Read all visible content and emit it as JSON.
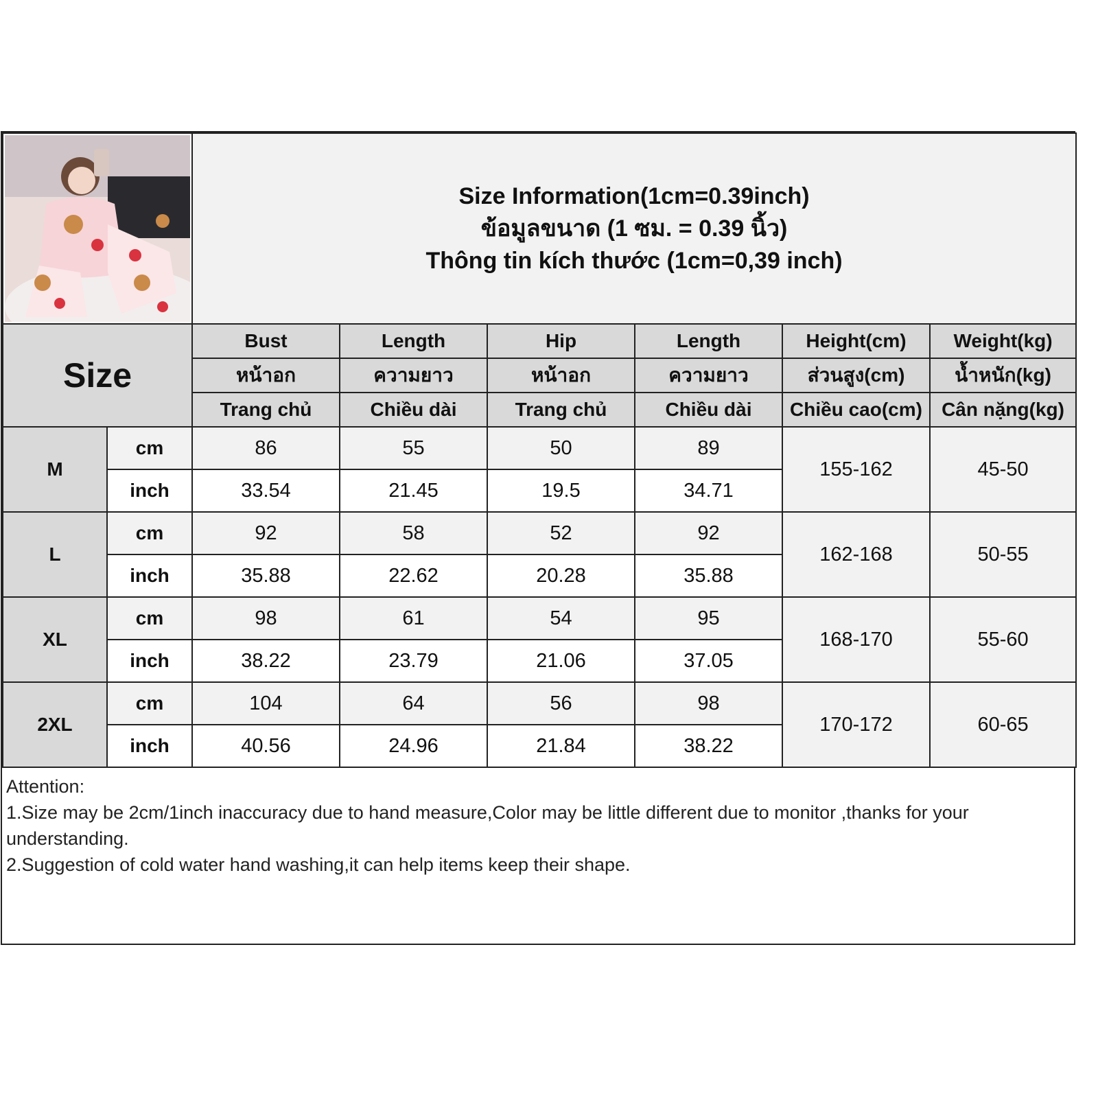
{
  "title": {
    "line1": "Size Information(1cm=0.39inch)",
    "line2": "ข้อมูลขนาด (1 ซม. = 0.39 นิ้ว)",
    "line3": "Thông tin kích thước (1cm=0,39 inch)"
  },
  "size_label": "Size",
  "columns": [
    {
      "en": "Bust",
      "th": "หน้าอก",
      "vi": "Trang chủ"
    },
    {
      "en": "Length",
      "th": "ความยาว",
      "vi": "Chiều dài"
    },
    {
      "en": "Hip",
      "th": "หน้าอก",
      "vi": "Trang chủ"
    },
    {
      "en": "Length",
      "th": "ความยาว",
      "vi": "Chiều dài"
    },
    {
      "en": "Height(cm)",
      "th": "ส่วนสูง(cm)",
      "vi": "Chiều cao(cm)"
    },
    {
      "en": "Weight(kg)",
      "th": "น้ำหนัก(kg)",
      "vi": "Cân nặng(kg)"
    }
  ],
  "units": {
    "cm": "cm",
    "inch": "inch"
  },
  "rows": [
    {
      "size": "M",
      "cm": [
        "86",
        "55",
        "50",
        "89"
      ],
      "inch": [
        "33.54",
        "21.45",
        "19.5",
        "34.71"
      ],
      "height": "155-162",
      "weight": "45-50"
    },
    {
      "size": "L",
      "cm": [
        "92",
        "58",
        "52",
        "92"
      ],
      "inch": [
        "35.88",
        "22.62",
        "20.28",
        "35.88"
      ],
      "height": "162-168",
      "weight": "50-55"
    },
    {
      "size": "XL",
      "cm": [
        "98",
        "61",
        "54",
        "95"
      ],
      "inch": [
        "38.22",
        "23.79",
        "21.06",
        "37.05"
      ],
      "height": "168-170",
      "weight": "55-60"
    },
    {
      "size": "2XL",
      "cm": [
        "104",
        "64",
        "56",
        "98"
      ],
      "inch": [
        "40.56",
        "24.96",
        "21.84",
        "38.22"
      ],
      "height": "170-172",
      "weight": "60-65"
    }
  ],
  "attention": {
    "heading": "Attention:",
    "note1": "1.Size may be 2cm/1inch inaccuracy due to hand measure,Color may be little different due to monitor ,thanks for your understanding.",
    "note2": "2.Suggestion of cold water hand washing,it can help items keep their shape."
  },
  "colors": {
    "header_gray": "#d9d9d9",
    "light_gray": "#f2f2f2",
    "border": "#222222"
  }
}
